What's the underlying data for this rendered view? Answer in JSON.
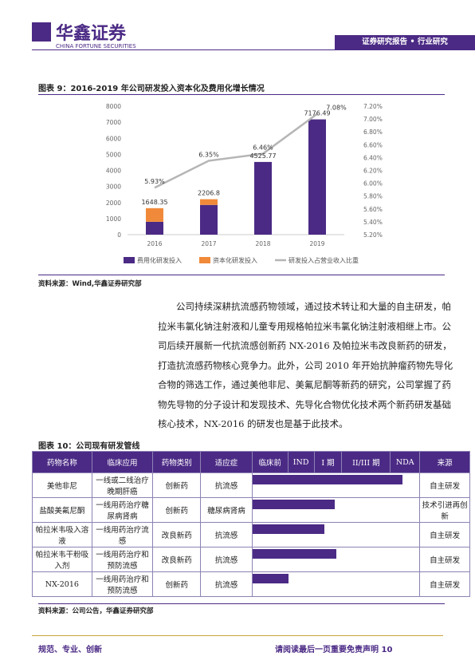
{
  "header": {
    "brand": "华鑫证券",
    "brand_en": "CHINA FORTUNE SECURITIES",
    "tag": "证券研究报告 • 行业研究"
  },
  "figure9": {
    "caption": "图表 9：2016-2019 年公司研发投入资本化及费用化增长情况",
    "source": "资料来源：Wind,华鑫证券研究部"
  },
  "chart_data": {
    "type": "bar",
    "stacked": true,
    "categories": [
      "2016",
      "2017",
      "2018",
      "2019"
    ],
    "series": [
      {
        "name": "费用化研发投入",
        "color": "#4b2a85",
        "values": [
          800,
          1850,
          4525.77,
          7176.49
        ]
      },
      {
        "name": "资本化研发投入",
        "color": "#f08a3a",
        "values": [
          848.35,
          356.8,
          0,
          0
        ]
      },
      {
        "name": "研发投入占营业收入比重",
        "type": "line",
        "axis": "y2",
        "color": "#b5b5b5",
        "values": [
          5.93,
          6.35,
          6.46,
          7.08
        ],
        "value_labels": [
          "5.93%",
          "6.35%",
          "6.46%",
          "7.08%"
        ]
      }
    ],
    "total_labels": [
      1648.35,
      2206.8,
      4525.77,
      7176.49
    ],
    "ylim": [
      0,
      8000
    ],
    "yticks": [
      0,
      1000,
      2000,
      3000,
      4000,
      5000,
      6000,
      7000,
      8000
    ],
    "y2lim": [
      5.2,
      7.2
    ],
    "y2ticks": [
      {
        "value": 5.2,
        "label": "5.20%"
      },
      {
        "value": 5.4,
        "label": "5.40%"
      },
      {
        "value": 5.6,
        "label": "5.60%"
      },
      {
        "value": 5.8,
        "label": "5.80%"
      },
      {
        "value": 6.0,
        "label": "6.00%"
      },
      {
        "value": 6.2,
        "label": "6.20%"
      },
      {
        "value": 6.4,
        "label": "6.40%"
      },
      {
        "value": 6.6,
        "label": "6.60%"
      },
      {
        "value": 6.8,
        "label": "6.80%"
      },
      {
        "value": 7.0,
        "label": "7.00%"
      },
      {
        "value": 7.2,
        "label": "7.20%"
      }
    ],
    "legend": "bottom"
  },
  "paragraph": "公司持续深耕抗流感药物领域，通过技术转让和大量的自主研发，帕拉米韦氯化钠注射液和儿童专用规格帕拉米韦氯化钠注射液相继上市。公司后续开展新一代抗流感创新药 NX-2016 及帕拉米韦改良新药的研发，打造抗流感药物核心竞争力。此外，公司 2010 年开始抗肿瘤药物先导化合物的筛选工作，通过美他非尼、美氟尼酮等新药的研究，公司掌握了药物先导物的分子设计和发现技术、先导化合物优化技术两个新药研发基础核心技术，NX-2016 的研发也是基于此技术。",
  "figure10": {
    "caption": "图表 10：公司现有研发管线",
    "source": "资料来源：公司公告，华鑫证券研究部"
  },
  "table": {
    "header": [
      "药物名称",
      "临床应用",
      "药物类别",
      "适应症",
      "临床前",
      "IND",
      "I 期",
      "II/III 期",
      "NDA",
      "来源"
    ],
    "rows": [
      [
        "美他非尼",
        "一线或二线治疗晚期肝癌",
        "创新药",
        "抗流感",
        "自主研发"
      ],
      [
        "盐酸美氟尼酮",
        "一线用药治疗糖尿病肾病",
        "创新药",
        "糖尿病肾病",
        "技术引进再创新"
      ],
      [
        "帕拉米韦吸入溶液",
        "一线用药治疗流感",
        "改良新药",
        "抗流感",
        "自主研发"
      ],
      [
        "帕拉米韦干粉吸入剂",
        "一线用药治疗和预防流感",
        "改良新药",
        "抗流感",
        "自主研发"
      ],
      [
        "NX-2016",
        "一线用药治疗和预防流感",
        "创新药",
        "抗流感",
        "自主研发"
      ]
    ]
  },
  "footer": {
    "motto": "规范、专业、创新",
    "notice": "请阅读最后一页重要免责声明",
    "page": "10"
  }
}
